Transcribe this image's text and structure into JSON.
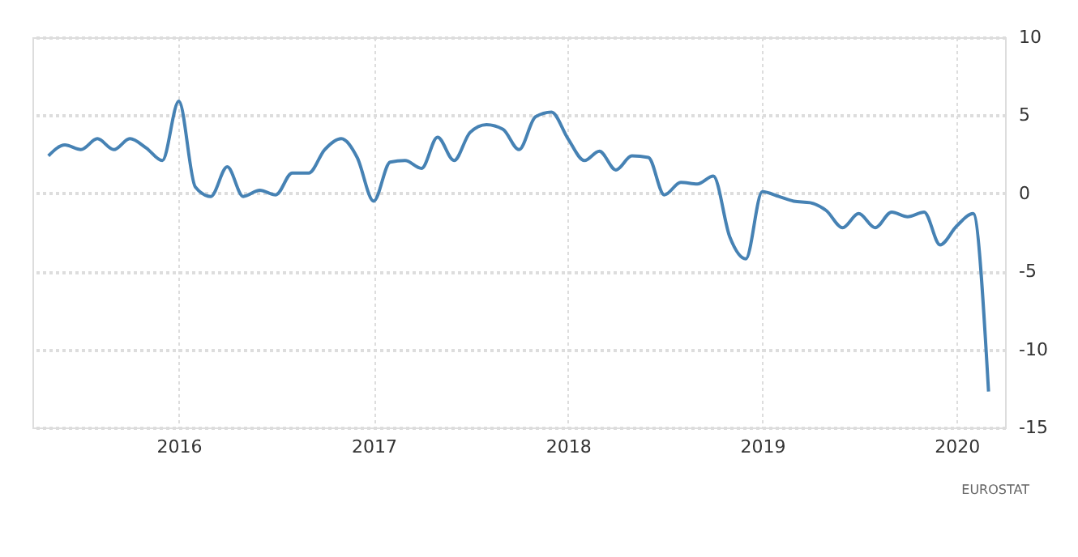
{
  "chart_data": {
    "type": "line",
    "x": [
      "2015-05",
      "2015-06",
      "2015-07",
      "2015-08",
      "2015-09",
      "2015-10",
      "2015-11",
      "2015-12",
      "2016-01",
      "2016-02",
      "2016-03",
      "2016-04",
      "2016-05",
      "2016-06",
      "2016-07",
      "2016-08",
      "2016-09",
      "2016-10",
      "2016-11",
      "2016-12",
      "2017-01",
      "2017-02",
      "2017-03",
      "2017-04",
      "2017-05",
      "2017-06",
      "2017-07",
      "2017-08",
      "2017-09",
      "2017-10",
      "2017-11",
      "2017-12",
      "2018-01",
      "2018-02",
      "2018-03",
      "2018-04",
      "2018-05",
      "2018-06",
      "2018-07",
      "2018-08",
      "2018-09",
      "2018-10",
      "2018-11",
      "2018-12",
      "2019-01",
      "2019-02",
      "2019-03",
      "2019-04",
      "2019-05",
      "2019-06",
      "2019-07",
      "2019-08",
      "2019-09",
      "2019-10",
      "2019-11",
      "2019-12",
      "2020-01",
      "2020-02",
      "2020-03"
    ],
    "series": [
      {
        "color": "#4682b4",
        "values": [
          2.4,
          3.1,
          2.8,
          3.5,
          2.8,
          3.5,
          2.9,
          2.1,
          5.9,
          0.4,
          -0.2,
          1.7,
          -0.2,
          0.2,
          -0.1,
          1.3,
          1.3,
          2.8,
          3.5,
          2.3,
          -0.5,
          2.0,
          2.1,
          1.6,
          3.6,
          2.1,
          3.9,
          4.4,
          4.1,
          2.8,
          4.9,
          5.2,
          3.5,
          2.1,
          2.7,
          1.5,
          2.4,
          2.3,
          -0.1,
          0.7,
          0.6,
          1.1,
          -2.8,
          -4.2,
          0.1,
          -0.2,
          -0.5,
          -0.6,
          -1.1,
          -2.2,
          -1.3,
          -2.2,
          -1.2,
          -1.5,
          -1.2,
          -3.3,
          -2.1,
          -1.3,
          -12.7
        ]
      }
    ],
    "xlim": [
      "2015-04",
      "2020-04"
    ],
    "xticks": [
      "2016",
      "2017",
      "2018",
      "2019",
      "2020"
    ],
    "ylim": [
      -15,
      10
    ],
    "yticks": [
      -15,
      -10,
      -5,
      0,
      5,
      10
    ],
    "grid": true,
    "legend": false,
    "line_style": "solid",
    "annotations": [
      "EUROSTAT"
    ]
  }
}
